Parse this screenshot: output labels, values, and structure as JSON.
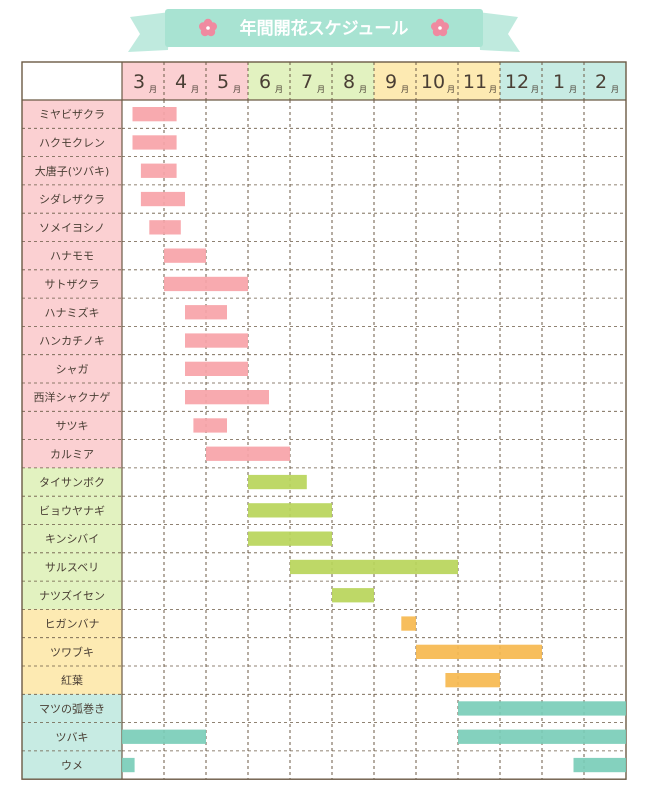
{
  "title": "年間開花スケジュール",
  "chart_data": {
    "type": "gantt",
    "title": "年間開花スケジュール",
    "month_suffix": "月",
    "months": [
      {
        "label": "3",
        "season": "spring"
      },
      {
        "label": "4",
        "season": "spring"
      },
      {
        "label": "5",
        "season": "spring"
      },
      {
        "label": "6",
        "season": "summer"
      },
      {
        "label": "7",
        "season": "summer"
      },
      {
        "label": "8",
        "season": "summer"
      },
      {
        "label": "9",
        "season": "autumn"
      },
      {
        "label": "10",
        "season": "autumn"
      },
      {
        "label": "11",
        "season": "autumn"
      },
      {
        "label": "12",
        "season": "winter"
      },
      {
        "label": "1",
        "season": "winter"
      },
      {
        "label": "2",
        "season": "winter"
      }
    ],
    "colors": {
      "spring_header": "#fbd0d2",
      "summer_header": "#e2f2c0",
      "autumn_header": "#fdeab2",
      "winter_header": "#c7ebe3",
      "spring_bar": "#f7a3a8",
      "summer_bar": "#b8d55a",
      "autumn_bar": "#f6b84f",
      "winter_bar": "#79cdb8",
      "grid": "#6b5a45",
      "title_ribbon": "#a8e3d2",
      "flower": "#f08aa0"
    },
    "start_unit": "months after the start of March",
    "rows": [
      {
        "name": "ミヤビザクラ",
        "season": "spring",
        "start": 0.25,
        "end": 1.3
      },
      {
        "name": "ハクモクレン",
        "season": "spring",
        "start": 0.25,
        "end": 1.3
      },
      {
        "name": "大唐子(ツバキ)",
        "season": "spring",
        "start": 0.45,
        "end": 1.3
      },
      {
        "name": "シダレザクラ",
        "season": "spring",
        "start": 0.45,
        "end": 1.5
      },
      {
        "name": "ソメイヨシノ",
        "season": "spring",
        "start": 0.65,
        "end": 1.4
      },
      {
        "name": "ハナモモ",
        "season": "spring",
        "start": 1.0,
        "end": 2.0
      },
      {
        "name": "サトザクラ",
        "season": "spring",
        "start": 1.0,
        "end": 3.0
      },
      {
        "name": "ハナミズキ",
        "season": "spring",
        "start": 1.5,
        "end": 2.5
      },
      {
        "name": "ハンカチノキ",
        "season": "spring",
        "start": 1.5,
        "end": 3.0
      },
      {
        "name": "シャガ",
        "season": "spring",
        "start": 1.5,
        "end": 3.0
      },
      {
        "name": "西洋シャクナゲ",
        "season": "spring",
        "start": 1.5,
        "end": 3.5
      },
      {
        "name": "サツキ",
        "season": "spring",
        "start": 1.7,
        "end": 2.5
      },
      {
        "name": "カルミア",
        "season": "spring",
        "start": 2.0,
        "end": 4.0
      },
      {
        "name": "タイサンボク",
        "season": "summer",
        "start": 3.0,
        "end": 4.4
      },
      {
        "name": "ビョウヤナギ",
        "season": "summer",
        "start": 3.0,
        "end": 5.0
      },
      {
        "name": "キンシバイ",
        "season": "summer",
        "start": 3.0,
        "end": 5.0
      },
      {
        "name": "サルスベリ",
        "season": "summer",
        "start": 4.0,
        "end": 8.0
      },
      {
        "name": "ナツズイセン",
        "season": "summer",
        "start": 5.0,
        "end": 6.0
      },
      {
        "name": "ヒガンバナ",
        "season": "autumn",
        "start": 6.65,
        "end": 7.0
      },
      {
        "name": "ツワブキ",
        "season": "autumn",
        "start": 7.0,
        "end": 10.0
      },
      {
        "name": "紅葉",
        "season": "autumn",
        "start": 7.7,
        "end": 9.0
      },
      {
        "name": "マツの弧巻き",
        "season": "winter",
        "start": 8.0,
        "end": 12.0
      },
      {
        "name": "ツバキ",
        "season": "winter",
        "segments": [
          [
            0.0,
            2.0
          ],
          [
            8.0,
            12.0
          ]
        ]
      },
      {
        "name": "ウメ",
        "season": "winter",
        "segments": [
          [
            0.0,
            0.3
          ],
          [
            10.75,
            12.0
          ]
        ]
      }
    ]
  }
}
